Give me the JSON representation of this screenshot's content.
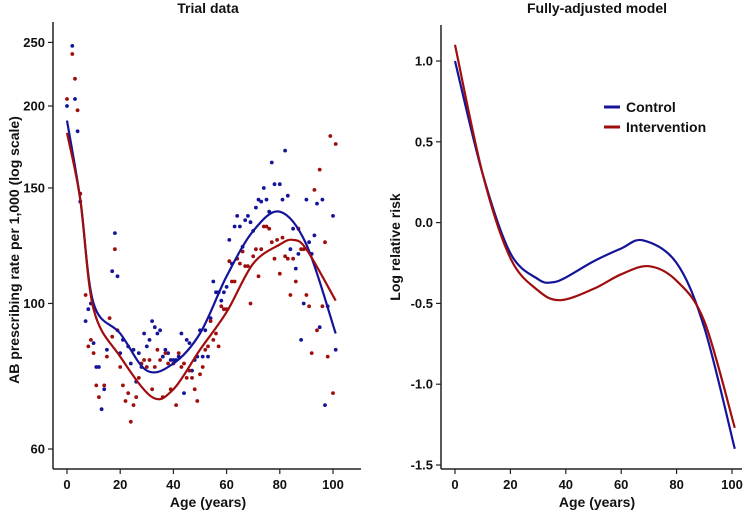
{
  "colors": {
    "control": "#14149a",
    "intervention": "#a00d0d",
    "axis": "#222222"
  },
  "chart_data": [
    {
      "type": "scatter",
      "title": "Trial data",
      "xlabel": "Age (years)",
      "ylabel": "AB prescribing rate per 1,000 (log scale)",
      "yscale": "log",
      "xlim": [
        -5,
        110
      ],
      "ylim": [
        57,
        275
      ],
      "xticks": [
        0,
        20,
        40,
        60,
        80,
        100
      ],
      "yticks": [
        60,
        100,
        150,
        200,
        250
      ],
      "grid": false,
      "series": [
        {
          "name": "Control",
          "color_key": "control",
          "points": [
            [
              0,
              200
            ],
            [
              2,
              247
            ],
            [
              3,
              205
            ],
            [
              4,
              183
            ],
            [
              5,
              143
            ],
            [
              7,
              94
            ],
            [
              8,
              98
            ],
            [
              9,
              100
            ],
            [
              10,
              87
            ],
            [
              11,
              80
            ],
            [
              12,
              80
            ],
            [
              13,
              69
            ],
            [
              14,
              74
            ],
            [
              15,
              85
            ],
            [
              17,
              112
            ],
            [
              18,
              128
            ],
            [
              19,
              110
            ],
            [
              20,
              84
            ],
            [
              21,
              88
            ],
            [
              23,
              86
            ],
            [
              24,
              81
            ],
            [
              25,
              85
            ],
            [
              26,
              76
            ],
            [
              27,
              84
            ],
            [
              28,
              80
            ],
            [
              29,
              90
            ],
            [
              30,
              86
            ],
            [
              31,
              88
            ],
            [
              32,
              94
            ],
            [
              33,
              92
            ],
            [
              34,
              90
            ],
            [
              35,
              91
            ],
            [
              36,
              83
            ],
            [
              37,
              85
            ],
            [
              38,
              84
            ],
            [
              39,
              82
            ],
            [
              40,
              82
            ],
            [
              41,
              82
            ],
            [
              42,
              83
            ],
            [
              43,
              90
            ],
            [
              44,
              73
            ],
            [
              45,
              88
            ],
            [
              46,
              87
            ],
            [
              47,
              79
            ],
            [
              48,
              82
            ],
            [
              49,
              83
            ],
            [
              50,
              91
            ],
            [
              51,
              83
            ],
            [
              52,
              91
            ],
            [
              53,
              83
            ],
            [
              54,
              95
            ],
            [
              55,
              108
            ],
            [
              56,
              104
            ],
            [
              57,
              104
            ],
            [
              58,
              101
            ],
            [
              59,
              104
            ],
            [
              60,
              106
            ],
            [
              61,
              125
            ],
            [
              62,
              115
            ],
            [
              63,
              131
            ],
            [
              64,
              136
            ],
            [
              65,
              131
            ],
            [
              66,
              122
            ],
            [
              67,
              134
            ],
            [
              68,
              136
            ],
            [
              69,
              133
            ],
            [
              70,
              129
            ],
            [
              71,
              140
            ],
            [
              72,
              144
            ],
            [
              73,
              143
            ],
            [
              74,
              150
            ],
            [
              75,
              144
            ],
            [
              76,
              138
            ],
            [
              77,
              164
            ],
            [
              78,
              152
            ],
            [
              80,
              152
            ],
            [
              81,
              144
            ],
            [
              82,
              171
            ],
            [
              83,
              146
            ],
            [
              84,
              121
            ],
            [
              85,
              130
            ],
            [
              86,
              113
            ],
            [
              87,
              119
            ],
            [
              88,
              88
            ],
            [
              89,
              100
            ],
            [
              90,
              144
            ],
            [
              91,
              124
            ],
            [
              92,
              119
            ],
            [
              93,
              127
            ],
            [
              94,
              142
            ],
            [
              95,
              92
            ],
            [
              96,
              144
            ],
            [
              97,
              70
            ],
            [
              98,
              99
            ],
            [
              100,
              136
            ],
            [
              101,
              85
            ]
          ],
          "fit": [
            [
              0,
              190
            ],
            [
              5,
              144
            ],
            [
              10,
              100
            ],
            [
              20,
              90
            ],
            [
              30,
              79
            ],
            [
              40,
              81
            ],
            [
              50,
              90
            ],
            [
              60,
              110
            ],
            [
              70,
              129
            ],
            [
              80,
              138
            ],
            [
              90,
              123
            ],
            [
              101,
              90
            ]
          ]
        },
        {
          "name": "Intervention",
          "color_key": "intervention",
          "points": [
            [
              0,
              205
            ],
            [
              2,
              240
            ],
            [
              3,
              220
            ],
            [
              4,
              197
            ],
            [
              5,
              147
            ],
            [
              7,
              103
            ],
            [
              8,
              86
            ],
            [
              9,
              88
            ],
            [
              10,
              84
            ],
            [
              11,
              75
            ],
            [
              12,
              72
            ],
            [
              14,
              75
            ],
            [
              15,
              83
            ],
            [
              16,
              95
            ],
            [
              17,
              89
            ],
            [
              18,
              121
            ],
            [
              19,
              91
            ],
            [
              20,
              80
            ],
            [
              21,
              75
            ],
            [
              22,
              71
            ],
            [
              23,
              73
            ],
            [
              24,
              66
            ],
            [
              25,
              70
            ],
            [
              26,
              72
            ],
            [
              27,
              77
            ],
            [
              28,
              81
            ],
            [
              29,
              82
            ],
            [
              30,
              80
            ],
            [
              31,
              82
            ],
            [
              32,
              74
            ],
            [
              33,
              80
            ],
            [
              34,
              85
            ],
            [
              35,
              82
            ],
            [
              36,
              72
            ],
            [
              37,
              84
            ],
            [
              38,
              81
            ],
            [
              39,
              74
            ],
            [
              40,
              81
            ],
            [
              41,
              70
            ],
            [
              42,
              84
            ],
            [
              43,
              80
            ],
            [
              44,
              81
            ],
            [
              45,
              77
            ],
            [
              46,
              79
            ],
            [
              47,
              77
            ],
            [
              48,
              74
            ],
            [
              49,
              71
            ],
            [
              50,
              78
            ],
            [
              51,
              80
            ],
            [
              52,
              85
            ],
            [
              53,
              86
            ],
            [
              54,
              94
            ],
            [
              55,
              88
            ],
            [
              56,
              90
            ],
            [
              57,
              86
            ],
            [
              58,
              99
            ],
            [
              59,
              98
            ],
            [
              60,
              98
            ],
            [
              61,
              116
            ],
            [
              62,
              108
            ],
            [
              63,
              108
            ],
            [
              64,
              117
            ],
            [
              65,
              115
            ],
            [
              66,
              120
            ],
            [
              67,
              114
            ],
            [
              68,
              114
            ],
            [
              69,
              100
            ],
            [
              70,
              118
            ],
            [
              71,
              121
            ],
            [
              72,
              110
            ],
            [
              73,
              121
            ],
            [
              74,
              131
            ],
            [
              75,
              131
            ],
            [
              76,
              130
            ],
            [
              77,
              124
            ],
            [
              78,
              117
            ],
            [
              79,
              125
            ],
            [
              80,
              111
            ],
            [
              81,
              126
            ],
            [
              82,
              118
            ],
            [
              83,
              117
            ],
            [
              84,
              103
            ],
            [
              85,
              117
            ],
            [
              86,
              108
            ],
            [
              87,
              130
            ],
            [
              88,
              121
            ],
            [
              89,
              121
            ],
            [
              90,
              103
            ],
            [
              91,
              99
            ],
            [
              92,
              84
            ],
            [
              93,
              149
            ],
            [
              94,
              91
            ],
            [
              95,
              160
            ],
            [
              96,
              99
            ],
            [
              97,
              124
            ],
            [
              98,
              83
            ],
            [
              99,
              180
            ],
            [
              100,
              73
            ],
            [
              101,
              175
            ]
          ],
          "fit": [
            [
              0,
              182
            ],
            [
              5,
              144
            ],
            [
              10,
              98
            ],
            [
              20,
              83
            ],
            [
              32,
              72
            ],
            [
              40,
              74
            ],
            [
              50,
              85
            ],
            [
              60,
              97
            ],
            [
              70,
              115
            ],
            [
              80,
              123
            ],
            [
              85,
              125
            ],
            [
              90,
              121
            ],
            [
              101,
              101
            ]
          ]
        }
      ]
    },
    {
      "type": "line",
      "title": "Fully-adjusted model",
      "xlabel": "Age (years)",
      "ylabel": "Log relative risk",
      "xlim": [
        -5,
        104
      ],
      "ylim": [
        -1.55,
        1.25
      ],
      "xticks": [
        0,
        20,
        40,
        60,
        80,
        100
      ],
      "yticks": [
        1.0,
        0.5,
        0.0,
        -0.5,
        -1.0,
        -1.5
      ],
      "ytick_labels": [
        "1.0",
        "0.5",
        "0.0",
        "-0.5",
        "-1.0",
        "-1.5"
      ],
      "legend": {
        "placement": "top-right",
        "entries": [
          "Control",
          "Intervention"
        ]
      },
      "grid": false,
      "series": [
        {
          "name": "Control",
          "color_key": "control",
          "x": [
            0,
            10,
            20,
            30,
            35,
            40,
            50,
            60,
            68,
            80,
            90,
            101
          ],
          "y": [
            1.0,
            0.3,
            -0.19,
            -0.35,
            -0.37,
            -0.34,
            -0.24,
            -0.16,
            -0.11,
            -0.25,
            -0.65,
            -1.4
          ]
        },
        {
          "name": "Intervention",
          "color_key": "intervention",
          "x": [
            0,
            10,
            20,
            30,
            38,
            50,
            60,
            70,
            80,
            90,
            101
          ],
          "y": [
            1.1,
            0.3,
            -0.22,
            -0.42,
            -0.48,
            -0.41,
            -0.32,
            -0.27,
            -0.36,
            -0.61,
            -1.27
          ]
        }
      ]
    }
  ]
}
